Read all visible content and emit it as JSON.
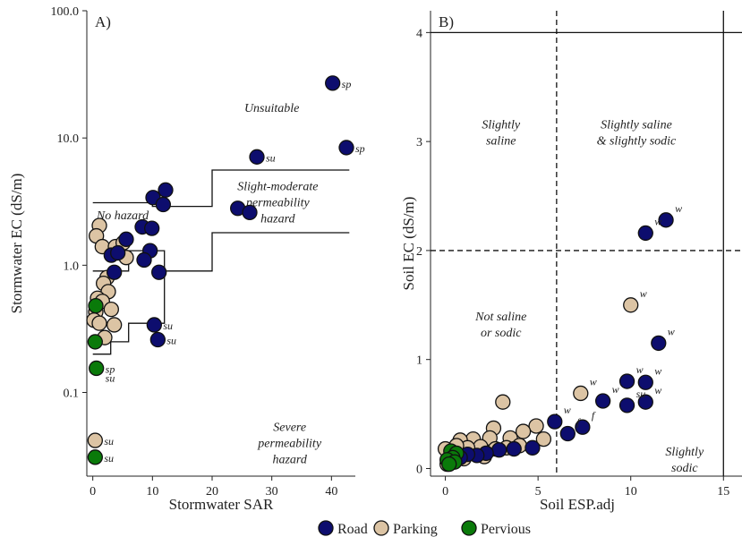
{
  "colors": {
    "Road": "#0d0d6e",
    "Parking": "#dcc4a4",
    "Pervious": "#0a7a0a",
    "stroke": "#111111"
  },
  "legend": {
    "items": [
      {
        "key": "Road",
        "label": "Road"
      },
      {
        "key": "Parking",
        "label": "Parking"
      },
      {
        "key": "Pervious",
        "label": "Pervious"
      }
    ],
    "placement": "bottom-center"
  },
  "chart_data": [
    {
      "panel": "A)",
      "type": "scatter",
      "xlabel": "Stormwater SAR",
      "ylabel": "Stormwater EC (dS/m)",
      "xlim": [
        -1,
        44
      ],
      "ylim": [
        0.022,
        100
      ],
      "ylog": true,
      "xticks": [
        0,
        10,
        20,
        30,
        40
      ],
      "yticks": [
        {
          "v": 0.1,
          "label": "0.1"
        },
        {
          "v": 1,
          "label": "1.0"
        },
        {
          "v": 10,
          "label": "10.0"
        },
        {
          "v": 100,
          "label": "100.0"
        }
      ],
      "boundaries": [
        [
          [
            0,
            3.1
          ],
          [
            10,
            3.1
          ],
          [
            10,
            2.9
          ],
          [
            20,
            2.9
          ],
          [
            20,
            5.6
          ],
          [
            43,
            5.6
          ]
        ],
        [
          [
            0,
            0.9
          ],
          [
            6,
            0.9
          ],
          [
            6,
            1.3
          ],
          [
            12,
            1.3
          ],
          [
            12,
            0.9
          ],
          [
            20,
            0.9
          ],
          [
            20,
            1.8
          ],
          [
            43,
            1.8
          ]
        ],
        [
          [
            0,
            0.2
          ],
          [
            3,
            0.2
          ],
          [
            3,
            0.25
          ],
          [
            6,
            0.25
          ],
          [
            6,
            0.35
          ],
          [
            12,
            0.35
          ],
          [
            12,
            0.9
          ]
        ]
      ],
      "zones": [
        {
          "lines": [
            "Unsuitable"
          ],
          "x": 30,
          "y": 16
        },
        {
          "lines": [
            "Slight-moderate",
            "permeability",
            "hazard"
          ],
          "x": 31,
          "y": 3.9
        },
        {
          "lines": [
            "No hazard"
          ],
          "x": 5,
          "y": 2.3
        },
        {
          "lines": [
            "Severe",
            "permeability",
            "hazard"
          ],
          "x": 33,
          "y": 0.05
        }
      ],
      "points": [
        {
          "x": 40.2,
          "y": 27,
          "g": "Road",
          "lab": "sp"
        },
        {
          "x": 42.5,
          "y": 8.4,
          "g": "Road",
          "lab": "sp"
        },
        {
          "x": 27.5,
          "y": 7.1,
          "g": "Road",
          "lab": "su"
        },
        {
          "x": 24.3,
          "y": 2.8,
          "g": "Road"
        },
        {
          "x": 26.3,
          "y": 2.6,
          "g": "Road"
        },
        {
          "x": 12.2,
          "y": 3.9,
          "g": "Road"
        },
        {
          "x": 10.1,
          "y": 3.4,
          "g": "Road"
        },
        {
          "x": 11.8,
          "y": 3.0,
          "g": "Road"
        },
        {
          "x": 8.3,
          "y": 2.0,
          "g": "Road"
        },
        {
          "x": 9.9,
          "y": 1.95,
          "g": "Road"
        },
        {
          "x": 5.6,
          "y": 1.6,
          "g": "Road"
        },
        {
          "x": 9.6,
          "y": 1.3,
          "g": "Road"
        },
        {
          "x": 8.6,
          "y": 1.1,
          "g": "Road"
        },
        {
          "x": 3.1,
          "y": 1.2,
          "g": "Road"
        },
        {
          "x": 4.2,
          "y": 1.25,
          "g": "Road"
        },
        {
          "x": 11.1,
          "y": 0.88,
          "g": "Road"
        },
        {
          "x": 3.6,
          "y": 0.88,
          "g": "Road"
        },
        {
          "x": 10.3,
          "y": 0.34,
          "g": "Road",
          "lab": "su"
        },
        {
          "x": 10.9,
          "y": 0.26,
          "g": "Road",
          "lab": "su"
        },
        {
          "x": 1.1,
          "y": 2.05,
          "g": "Parking"
        },
        {
          "x": 0.6,
          "y": 1.7,
          "g": "Parking"
        },
        {
          "x": 1.6,
          "y": 1.4,
          "g": "Parking"
        },
        {
          "x": 3.8,
          "y": 1.4,
          "g": "Parking"
        },
        {
          "x": 5.1,
          "y": 1.5,
          "g": "Parking"
        },
        {
          "x": 5.6,
          "y": 1.15,
          "g": "Parking"
        },
        {
          "x": 2.4,
          "y": 0.8,
          "g": "Parking"
        },
        {
          "x": 1.8,
          "y": 0.72,
          "g": "Parking"
        },
        {
          "x": 2.6,
          "y": 0.62,
          "g": "Parking"
        },
        {
          "x": 0.8,
          "y": 0.55,
          "g": "Parking"
        },
        {
          "x": 1.6,
          "y": 0.52,
          "g": "Parking"
        },
        {
          "x": 3.1,
          "y": 0.45,
          "g": "Parking"
        },
        {
          "x": 0.5,
          "y": 0.43,
          "g": "Parking"
        },
        {
          "x": 0.2,
          "y": 0.37,
          "g": "Parking"
        },
        {
          "x": 1.1,
          "y": 0.35,
          "g": "Parking"
        },
        {
          "x": 3.6,
          "y": 0.34,
          "g": "Parking"
        },
        {
          "x": 2.0,
          "y": 0.27,
          "g": "Parking"
        },
        {
          "x": 0.4,
          "y": 0.042,
          "g": "Parking",
          "lab": "su"
        },
        {
          "x": 0.5,
          "y": 0.48,
          "g": "Pervious"
        },
        {
          "x": 0.4,
          "y": 0.25,
          "g": "Pervious"
        },
        {
          "x": 0.6,
          "y": 0.155,
          "g": "Pervious",
          "lab": "sp",
          "lab2": "su"
        },
        {
          "x": 0.4,
          "y": 0.031,
          "g": "Pervious",
          "lab": "su"
        }
      ]
    },
    {
      "panel": "B)",
      "type": "scatter",
      "xlabel": "Soil ESP.adj",
      "ylabel": "Soil EC (dS/m)",
      "xlim": [
        -0.8,
        16
      ],
      "ylim": [
        -0.07,
        4.2
      ],
      "xticks": [
        0,
        5,
        10,
        15
      ],
      "yticks": [
        {
          "v": 0,
          "label": "0"
        },
        {
          "v": 1,
          "label": "1"
        },
        {
          "v": 2,
          "label": "2"
        },
        {
          "v": 3,
          "label": "3"
        },
        {
          "v": 4,
          "label": "4"
        }
      ],
      "hlines": [
        {
          "y": 4,
          "dash": false
        },
        {
          "y": 2,
          "dash": true
        }
      ],
      "vlines": [
        {
          "x": 6,
          "dash": true
        },
        {
          "x": 15,
          "dash": false
        }
      ],
      "zones": [
        {
          "lines": [
            "Slightly",
            "saline"
          ],
          "x": 3,
          "y": 3.12
        },
        {
          "lines": [
            "Slightly saline",
            "& slightly sodic"
          ],
          "x": 10.3,
          "y": 3.12
        },
        {
          "lines": [
            "Not saline",
            "or sodic"
          ],
          "x": 3,
          "y": 1.36
        },
        {
          "lines": [
            "Slightly",
            "sodic"
          ],
          "x": 12.9,
          "y": 0.12
        }
      ],
      "points": [
        {
          "x": 11.9,
          "y": 2.28,
          "g": "Road",
          "lab": "w"
        },
        {
          "x": 10.8,
          "y": 2.16,
          "g": "Road",
          "lab": "w"
        },
        {
          "x": 11.5,
          "y": 1.15,
          "g": "Road",
          "lab": "w"
        },
        {
          "x": 9.8,
          "y": 0.8,
          "g": "Road",
          "lab": "w"
        },
        {
          "x": 10.8,
          "y": 0.79,
          "g": "Road",
          "lab": "w"
        },
        {
          "x": 8.5,
          "y": 0.62,
          "g": "Road",
          "lab": "w"
        },
        {
          "x": 9.8,
          "y": 0.58,
          "g": "Road",
          "lab": "su"
        },
        {
          "x": 10.8,
          "y": 0.61,
          "g": "Road",
          "lab": "w"
        },
        {
          "x": 7.4,
          "y": 0.38,
          "g": "Road",
          "lab": "f"
        },
        {
          "x": 6.6,
          "y": 0.32,
          "g": "Road",
          "lab": "f"
        },
        {
          "x": 5.9,
          "y": 0.43,
          "g": "Road",
          "lab": "w"
        },
        {
          "x": 4.7,
          "y": 0.19,
          "g": "Road"
        },
        {
          "x": 3.7,
          "y": 0.18,
          "g": "Road"
        },
        {
          "x": 2.9,
          "y": 0.17,
          "g": "Road"
        },
        {
          "x": 2.2,
          "y": 0.14,
          "g": "Road"
        },
        {
          "x": 1.7,
          "y": 0.12,
          "g": "Road"
        },
        {
          "x": 1.2,
          "y": 0.13,
          "g": "Road"
        },
        {
          "x": 0.8,
          "y": 0.1,
          "g": "Road"
        },
        {
          "x": 0.4,
          "y": 0.12,
          "g": "Road"
        },
        {
          "x": 0.2,
          "y": 0.08,
          "g": "Road"
        },
        {
          "x": 10.0,
          "y": 1.5,
          "g": "Parking",
          "lab": "w"
        },
        {
          "x": 7.3,
          "y": 0.69,
          "g": "Parking",
          "lab": "w"
        },
        {
          "x": 3.1,
          "y": 0.61,
          "g": "Parking"
        },
        {
          "x": 4.9,
          "y": 0.39,
          "g": "Parking"
        },
        {
          "x": 4.2,
          "y": 0.34,
          "g": "Parking"
        },
        {
          "x": 2.6,
          "y": 0.37,
          "g": "Parking"
        },
        {
          "x": 5.3,
          "y": 0.27,
          "g": "Parking"
        },
        {
          "x": 3.5,
          "y": 0.28,
          "g": "Parking"
        },
        {
          "x": 2.4,
          "y": 0.28,
          "g": "Parking"
        },
        {
          "x": 1.5,
          "y": 0.27,
          "g": "Parking"
        },
        {
          "x": 0.8,
          "y": 0.26,
          "g": "Parking"
        },
        {
          "x": 4.0,
          "y": 0.21,
          "g": "Parking"
        },
        {
          "x": 3.3,
          "y": 0.19,
          "g": "Parking"
        },
        {
          "x": 2.7,
          "y": 0.18,
          "g": "Parking"
        },
        {
          "x": 1.9,
          "y": 0.2,
          "g": "Parking"
        },
        {
          "x": 1.2,
          "y": 0.19,
          "g": "Parking"
        },
        {
          "x": 0.6,
          "y": 0.21,
          "g": "Parking"
        },
        {
          "x": 0.0,
          "y": 0.18,
          "g": "Parking"
        },
        {
          "x": 2.1,
          "y": 0.11,
          "g": "Parking"
        },
        {
          "x": 1.0,
          "y": 0.09,
          "g": "Parking"
        },
        {
          "x": 0.4,
          "y": 0.06,
          "g": "Parking"
        },
        {
          "x": 0.1,
          "y": 0.04,
          "g": "Parking"
        },
        {
          "x": 0.3,
          "y": 0.16,
          "g": "Pervious"
        },
        {
          "x": 0.6,
          "y": 0.14,
          "g": "Pervious"
        },
        {
          "x": 0.4,
          "y": 0.1,
          "g": "Pervious"
        },
        {
          "x": 0.1,
          "y": 0.08,
          "g": "Pervious"
        },
        {
          "x": 0.5,
          "y": 0.06,
          "g": "Pervious"
        },
        {
          "x": 0.2,
          "y": 0.04,
          "g": "Pervious"
        }
      ]
    }
  ]
}
